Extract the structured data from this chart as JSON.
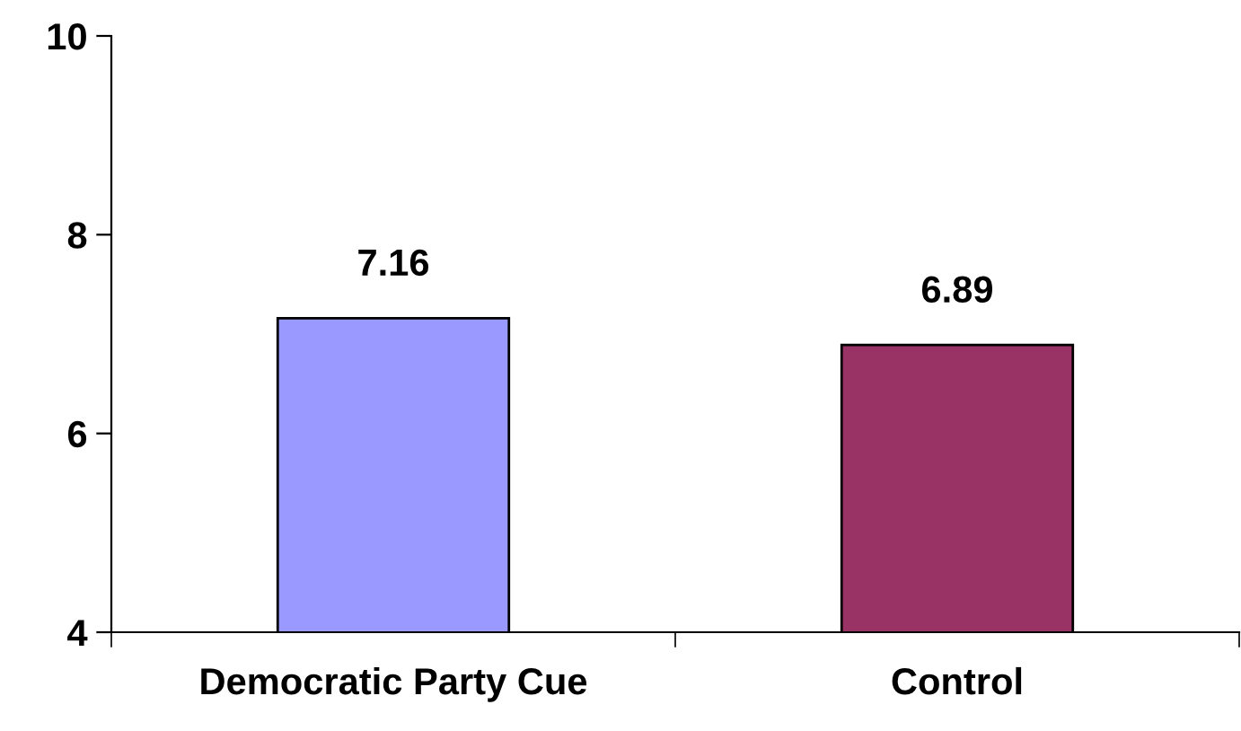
{
  "chart_data": {
    "type": "bar",
    "categories": [
      "Democratic Party Cue",
      "Control"
    ],
    "values": [
      7.16,
      6.89
    ],
    "colors": [
      "#9999ff",
      "#993366"
    ],
    "ylim": [
      4,
      10
    ],
    "yticks": [
      4,
      6,
      8,
      10
    ],
    "data_labels": true,
    "grid": false,
    "legend": false
  }
}
